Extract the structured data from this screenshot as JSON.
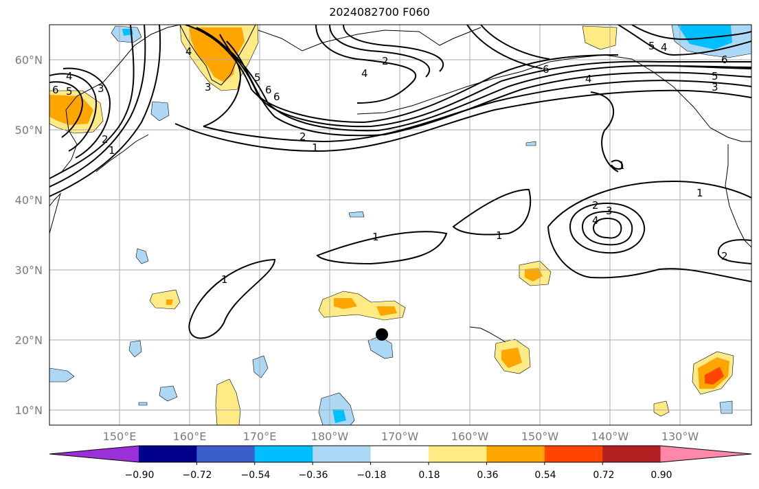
{
  "title": "2024082700 F060",
  "lat_labels": [
    "60°N",
    "50°N",
    "40°N",
    "30°N",
    "20°N",
    "10°N"
  ],
  "lon_labels": [
    "150°E",
    "160°E",
    "170°E",
    "180°W",
    "170°W",
    "160°W",
    "150°W",
    "140°W",
    "130°W"
  ],
  "colorbar": {
    "colors": [
      "#9b30d9",
      "#00008b",
      "#3a5fcd",
      "#00bfff",
      "#add8f5",
      "#ffffff",
      "#ffeb86",
      "#ffa500",
      "#ff4500",
      "#b22222",
      "#ff88aa"
    ],
    "ticks": [
      "−0.90",
      "−0.72",
      "−0.54",
      "−0.36",
      "−0.18",
      "0.18",
      "0.36",
      "0.54",
      "0.72",
      "0.90"
    ]
  },
  "contour_labels": {
    "north": [
      "6",
      "4",
      "5",
      "3",
      "2",
      "4",
      "3",
      "2",
      "4",
      "5",
      "6",
      "2",
      "1",
      "6",
      "4",
      "5",
      "3",
      "5",
      "6",
      "4",
      "6",
      "1"
    ],
    "central": [
      "1",
      "1",
      "1",
      "1"
    ],
    "east_low": [
      "1",
      "2",
      "3",
      "4",
      "2"
    ]
  },
  "marker": "storm-position-dot"
}
